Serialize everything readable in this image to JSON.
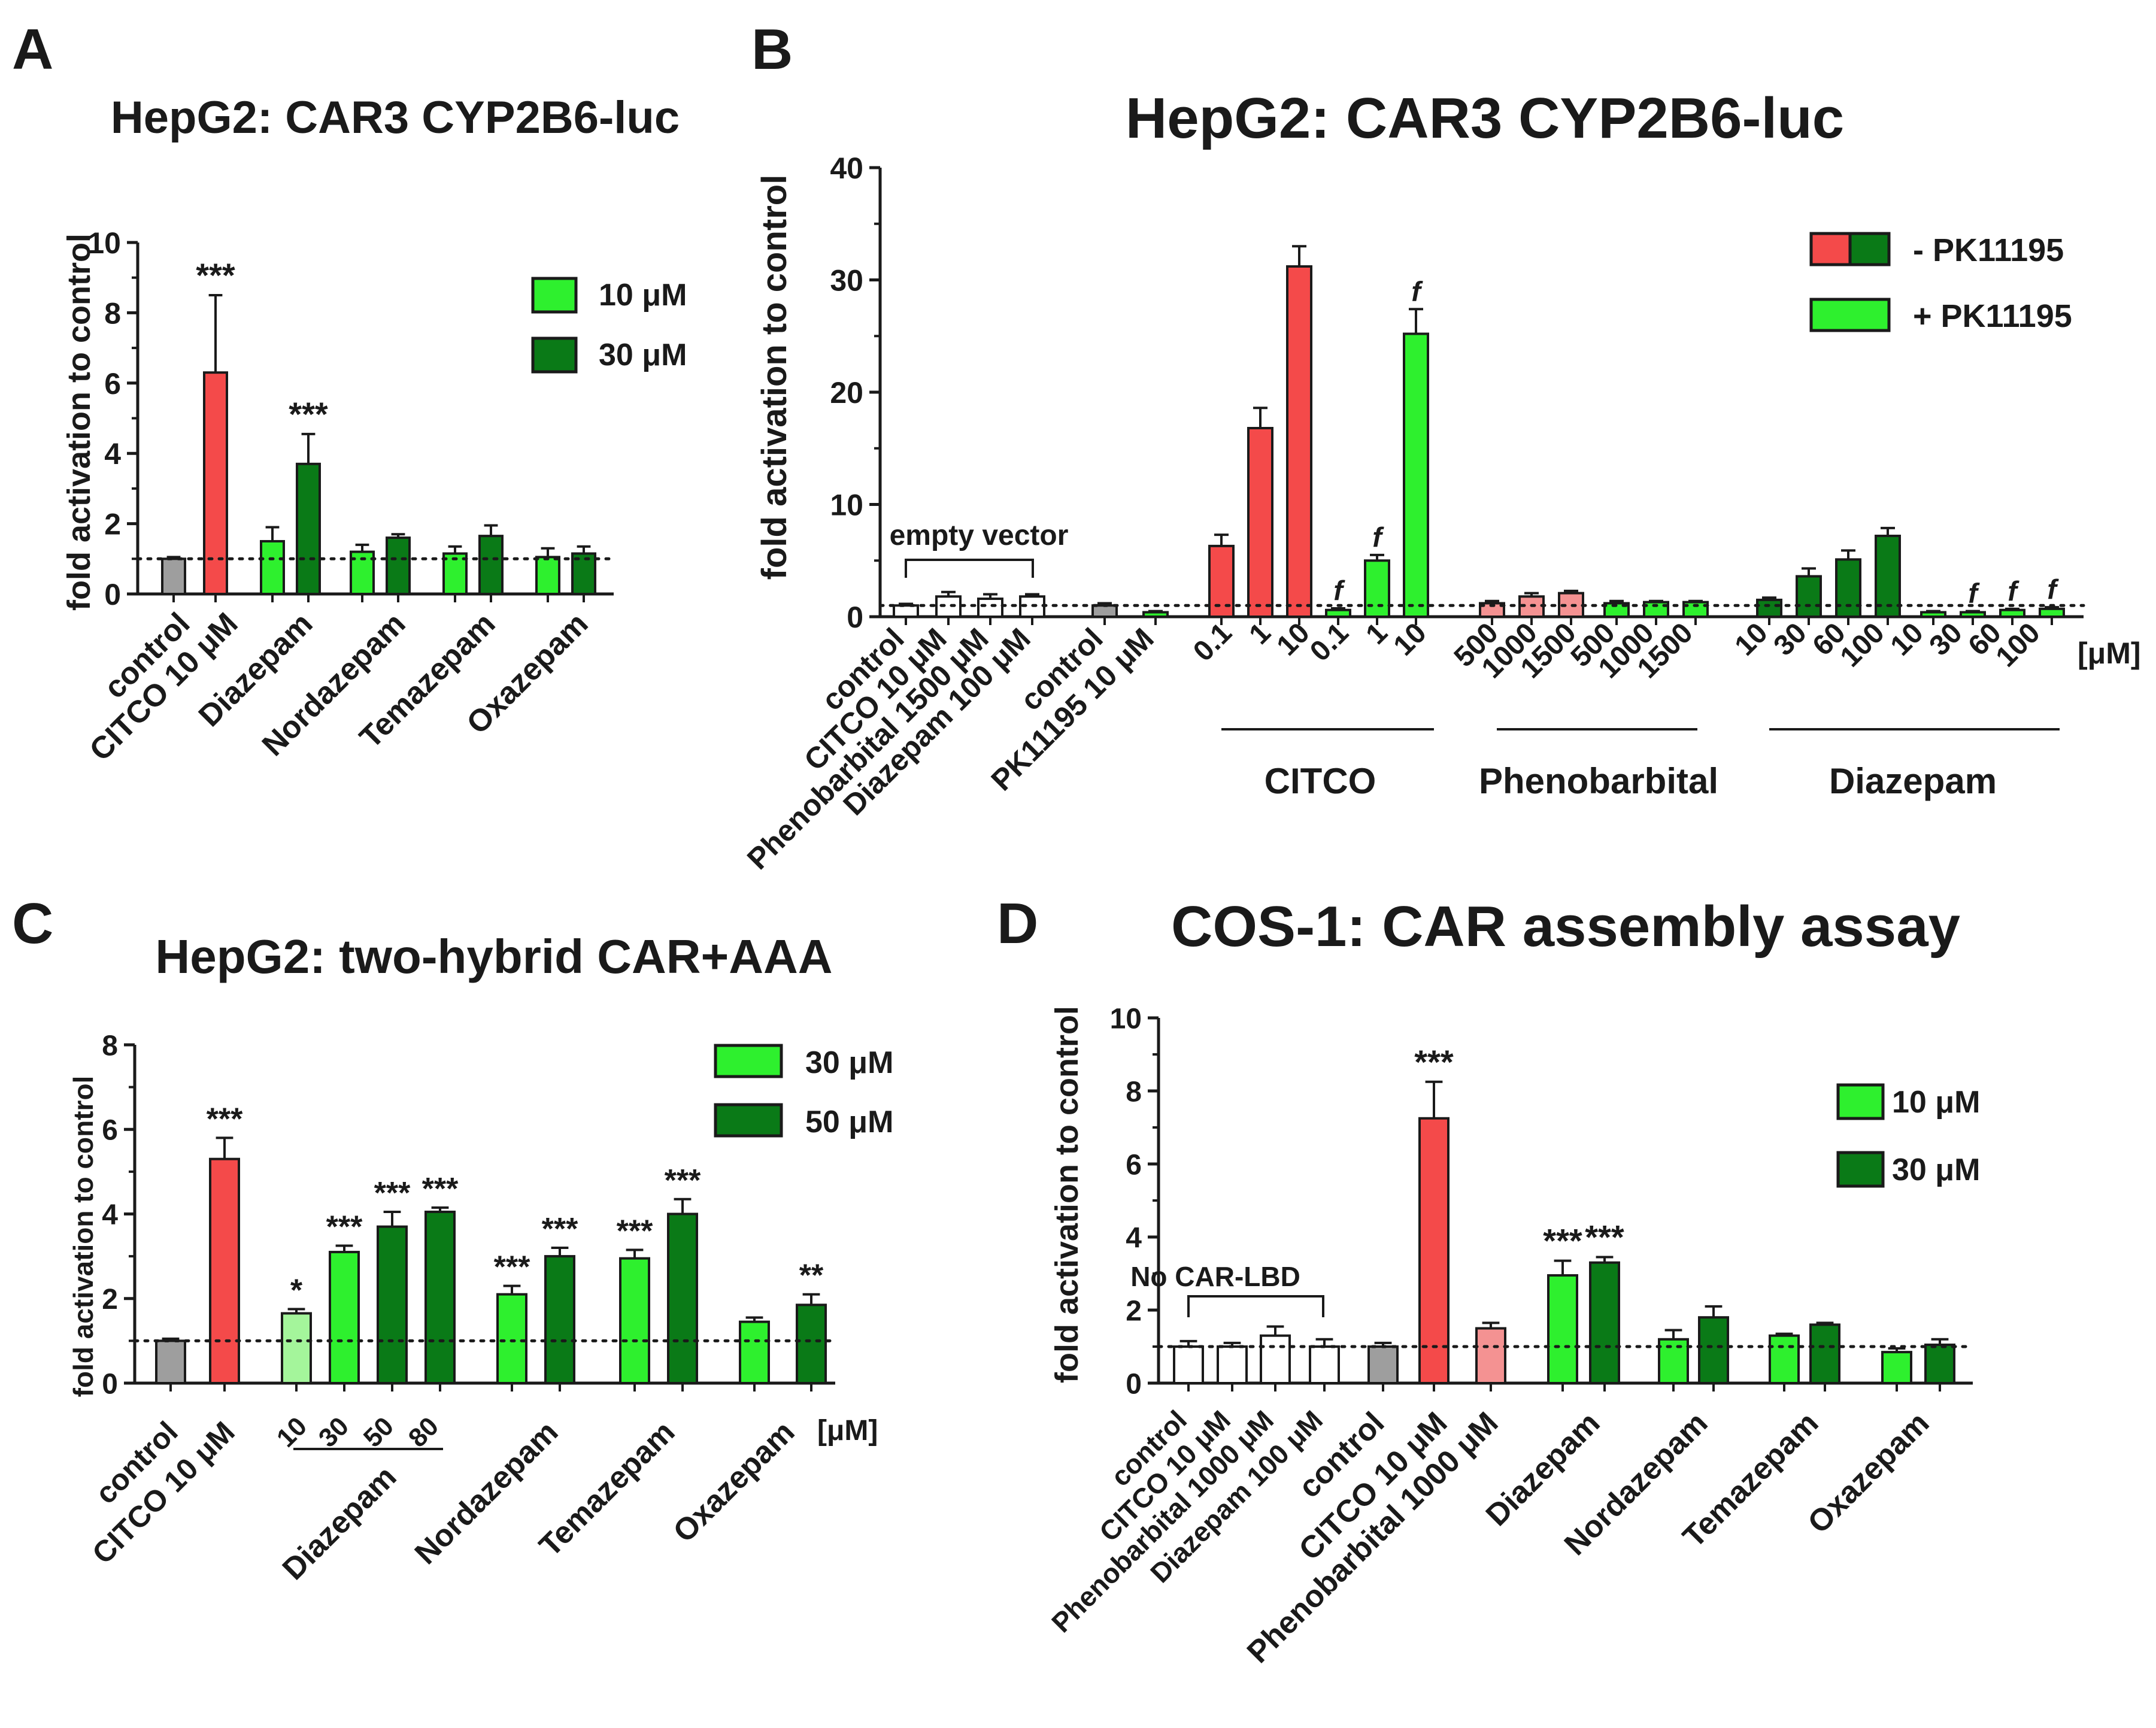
{
  "colors": {
    "grey": "#9e9e9e",
    "red": "#f44a4a",
    "pink": "#f49292",
    "white": "#ffffff",
    "light_green": "#2ef02e",
    "pale_green": "#a4f59b",
    "dark_green": "#0a7a17",
    "axis": "#1a1a1a"
  },
  "chart_data": [
    {
      "panel": "A",
      "type": "bar",
      "title": "HepG2: CAR3 CYP2B6-luc",
      "ylabel": "fold activation to control",
      "ylim": [
        0,
        10
      ],
      "yticks": [
        "0",
        "2",
        "4",
        "6",
        "8",
        "10"
      ],
      "baseline": 1,
      "legend": [
        {
          "label": "10 μM",
          "color": "light_green"
        },
        {
          "label": "30 μM",
          "color": "dark_green"
        }
      ],
      "bars": [
        {
          "value": 1.0,
          "error": 0.05,
          "color": "grey",
          "sig": ""
        },
        {
          "value": 6.3,
          "error": 2.2,
          "color": "red",
          "sig": "***"
        },
        {
          "value": 1.5,
          "error": 0.4,
          "color": "light_green",
          "sig": ""
        },
        {
          "value": 3.7,
          "error": 0.85,
          "color": "dark_green",
          "sig": "***"
        },
        {
          "value": 1.2,
          "error": 0.2,
          "color": "light_green",
          "sig": ""
        },
        {
          "value": 1.6,
          "error": 0.1,
          "color": "dark_green",
          "sig": ""
        },
        {
          "value": 1.15,
          "error": 0.2,
          "color": "light_green",
          "sig": ""
        },
        {
          "value": 1.65,
          "error": 0.3,
          "color": "dark_green",
          "sig": ""
        },
        {
          "value": 1.05,
          "error": 0.25,
          "color": "light_green",
          "sig": ""
        },
        {
          "value": 1.15,
          "error": 0.2,
          "color": "dark_green",
          "sig": ""
        }
      ],
      "xlabels": [
        "control",
        "CITCO 10 μM",
        "Diazepam",
        "Nordazepam",
        "Temazepam",
        "Oxazepam"
      ]
    },
    {
      "panel": "B",
      "type": "bar",
      "title": "HepG2: CAR3 CYP2B6-luc",
      "ylabel": "fold activation to control",
      "ylim": [
        0,
        40
      ],
      "yticks": [
        "0",
        "10",
        "20",
        "30",
        "40"
      ],
      "baseline": 1,
      "legend": [
        {
          "label": "- PK11195",
          "colors": [
            "red",
            "dark_green"
          ]
        },
        {
          "label": "+ PK11195",
          "colors": [
            "light_green"
          ]
        }
      ],
      "bracket_label": "empty vector",
      "unit": "[μM]",
      "bars": [
        {
          "value": 1.0,
          "error": 0.15,
          "color": "white",
          "sig": ""
        },
        {
          "value": 1.8,
          "error": 0.4,
          "color": "white",
          "sig": ""
        },
        {
          "value": 1.6,
          "error": 0.4,
          "color": "white",
          "sig": ""
        },
        {
          "value": 1.8,
          "error": 0.2,
          "color": "white",
          "sig": ""
        },
        {
          "value": 1.0,
          "error": 0.2,
          "color": "grey",
          "sig": ""
        },
        {
          "value": 0.4,
          "error": 0.1,
          "color": "light_green",
          "sig": ""
        },
        {
          "value": 6.3,
          "error": 1.0,
          "color": "red",
          "sig": ""
        },
        {
          "value": 16.8,
          "error": 1.8,
          "color": "red",
          "sig": ""
        },
        {
          "value": 31.2,
          "error": 1.8,
          "color": "red",
          "sig": ""
        },
        {
          "value": 0.6,
          "error": 0.15,
          "color": "light_green",
          "sig": "f"
        },
        {
          "value": 5.0,
          "error": 0.5,
          "color": "light_green",
          "sig": "f"
        },
        {
          "value": 25.2,
          "error": 2.2,
          "color": "light_green",
          "sig": "f"
        },
        {
          "value": 1.2,
          "error": 0.2,
          "color": "pink",
          "sig": ""
        },
        {
          "value": 1.8,
          "error": 0.3,
          "color": "pink",
          "sig": ""
        },
        {
          "value": 2.1,
          "error": 0.2,
          "color": "pink",
          "sig": ""
        },
        {
          "value": 1.2,
          "error": 0.2,
          "color": "light_green",
          "sig": ""
        },
        {
          "value": 1.3,
          "error": 0.1,
          "color": "light_green",
          "sig": ""
        },
        {
          "value": 1.3,
          "error": 0.1,
          "color": "light_green",
          "sig": ""
        },
        {
          "value": 1.5,
          "error": 0.2,
          "color": "dark_green",
          "sig": ""
        },
        {
          "value": 3.6,
          "error": 0.7,
          "color": "dark_green",
          "sig": ""
        },
        {
          "value": 5.1,
          "error": 0.8,
          "color": "dark_green",
          "sig": ""
        },
        {
          "value": 7.2,
          "error": 0.7,
          "color": "dark_green",
          "sig": ""
        },
        {
          "value": 0.4,
          "error": 0.1,
          "color": "light_green",
          "sig": ""
        },
        {
          "value": 0.4,
          "error": 0.1,
          "color": "light_green",
          "sig": "f"
        },
        {
          "value": 0.6,
          "error": 0.1,
          "color": "light_green",
          "sig": "f"
        },
        {
          "value": 0.7,
          "error": 0.15,
          "color": "light_green",
          "sig": "f"
        }
      ],
      "xlabels": [
        "control",
        "CITCO 10 μM",
        "Phenobarbital 1500 μM",
        "Diazepam 100 μM",
        "control",
        "PK11195 10 μM",
        "0.1",
        "1",
        "10",
        "0.1",
        "1",
        "10",
        "500",
        "1000",
        "1500",
        "500",
        "1000",
        "1500",
        "10",
        "30",
        "60",
        "100",
        "10",
        "30",
        "60",
        "100"
      ],
      "groups": [
        "CITCO",
        "Phenobarbital",
        "Diazepam"
      ]
    },
    {
      "panel": "C",
      "type": "bar",
      "title": "HepG2: two-hybrid CAR+AAA",
      "ylabel": "fold activation to control",
      "ylim": [
        0,
        8
      ],
      "yticks": [
        "0",
        "2",
        "4",
        "6",
        "8"
      ],
      "baseline": 1,
      "legend": [
        {
          "label": "30 μM",
          "color": "light_green"
        },
        {
          "label": "50 μM",
          "color": "dark_green"
        }
      ],
      "unit": "[μM]",
      "bars": [
        {
          "value": 1.0,
          "error": 0.05,
          "color": "grey",
          "sig": ""
        },
        {
          "value": 5.3,
          "error": 0.5,
          "color": "red",
          "sig": "***"
        },
        {
          "value": 1.65,
          "error": 0.1,
          "color": "pale_green",
          "sig": "*"
        },
        {
          "value": 3.1,
          "error": 0.15,
          "color": "light_green",
          "sig": "***"
        },
        {
          "value": 3.7,
          "error": 0.35,
          "color": "dark_green",
          "sig": "***"
        },
        {
          "value": 4.05,
          "error": 0.1,
          "color": "dark_green",
          "sig": "***"
        },
        {
          "value": 2.1,
          "error": 0.2,
          "color": "light_green",
          "sig": "***"
        },
        {
          "value": 3.0,
          "error": 0.2,
          "color": "dark_green",
          "sig": "***"
        },
        {
          "value": 2.95,
          "error": 0.2,
          "color": "light_green",
          "sig": "***"
        },
        {
          "value": 4.0,
          "error": 0.35,
          "color": "dark_green",
          "sig": "***"
        },
        {
          "value": 1.45,
          "error": 0.1,
          "color": "light_green",
          "sig": ""
        },
        {
          "value": 1.85,
          "error": 0.25,
          "color": "dark_green",
          "sig": "**"
        }
      ],
      "xlabels": [
        "control",
        "CITCO 10 μM",
        "10",
        "30",
        "50",
        "80",
        "Diazepam",
        "Nordazepam",
        "Temazepam",
        "Oxazepam"
      ]
    },
    {
      "panel": "D",
      "type": "bar",
      "title": "COS-1: CAR assembly assay",
      "ylabel": "fold activation to control",
      "ylim": [
        0,
        10
      ],
      "yticks": [
        "0",
        "2",
        "4",
        "6",
        "8",
        "10"
      ],
      "baseline": 1,
      "legend": [
        {
          "label": "10 μM",
          "color": "light_green"
        },
        {
          "label": "30 μM",
          "color": "dark_green"
        }
      ],
      "bracket_label": "No CAR-LBD",
      "bars": [
        {
          "value": 1.0,
          "error": 0.15,
          "color": "white",
          "sig": ""
        },
        {
          "value": 1.0,
          "error": 0.1,
          "color": "white",
          "sig": ""
        },
        {
          "value": 1.3,
          "error": 0.25,
          "color": "white",
          "sig": ""
        },
        {
          "value": 1.0,
          "error": 0.2,
          "color": "white",
          "sig": ""
        },
        {
          "value": 1.0,
          "error": 0.1,
          "color": "grey",
          "sig": ""
        },
        {
          "value": 7.25,
          "error": 1.0,
          "color": "red",
          "sig": "***"
        },
        {
          "value": 1.5,
          "error": 0.15,
          "color": "pink",
          "sig": ""
        },
        {
          "value": 2.95,
          "error": 0.4,
          "color": "light_green",
          "sig": "***"
        },
        {
          "value": 3.3,
          "error": 0.15,
          "color": "dark_green",
          "sig": "***"
        },
        {
          "value": 1.2,
          "error": 0.25,
          "color": "light_green",
          "sig": ""
        },
        {
          "value": 1.8,
          "error": 0.3,
          "color": "dark_green",
          "sig": ""
        },
        {
          "value": 1.3,
          "error": 0.05,
          "color": "light_green",
          "sig": ""
        },
        {
          "value": 1.6,
          "error": 0.05,
          "color": "dark_green",
          "sig": ""
        },
        {
          "value": 0.85,
          "error": 0.1,
          "color": "light_green",
          "sig": ""
        },
        {
          "value": 1.05,
          "error": 0.15,
          "color": "dark_green",
          "sig": ""
        }
      ],
      "xlabels": [
        "control",
        "CITCO 10 μM",
        "Phenobarbital 1000 μM",
        "Diazepam 100 μM",
        "control",
        "CITCO 10 μM",
        "Phenobarbital 1000 μM",
        "Diazepam",
        "Nordazepam",
        "Temazepam",
        "Oxazepam"
      ]
    }
  ]
}
